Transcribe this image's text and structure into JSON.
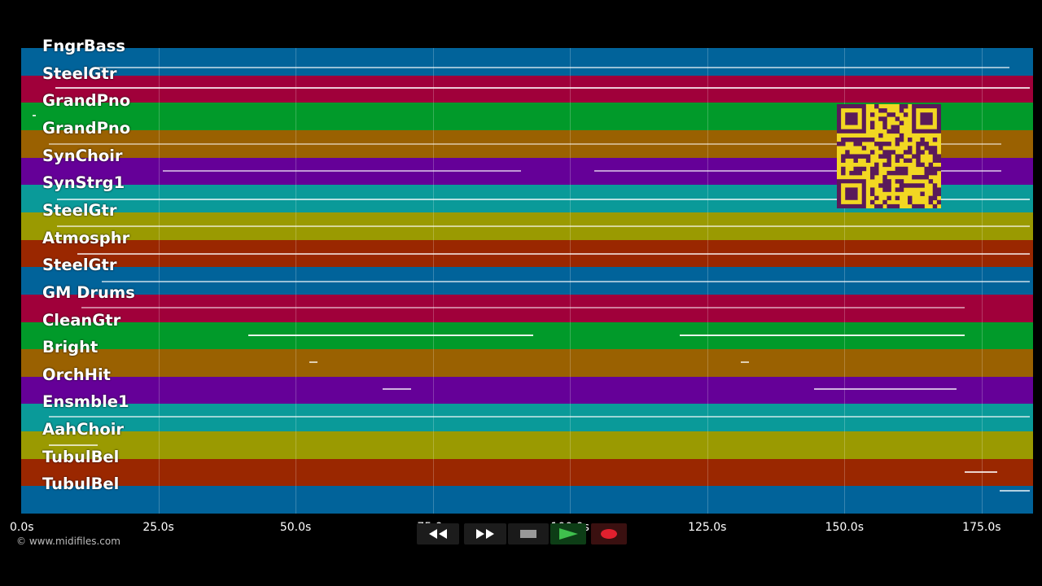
{
  "tracks": [
    {
      "name": "FngrBass",
      "color": "#01639a"
    },
    {
      "name": "SteelGtr",
      "color": "#a0003a"
    },
    {
      "name": "GrandPno",
      "color": "#019a2a"
    },
    {
      "name": "GrandPno",
      "color": "#9a6101"
    },
    {
      "name": "SynChoir",
      "color": "#650098"
    },
    {
      "name": "SynStrg1",
      "color": "#0a9a99"
    },
    {
      "name": "SteelGtr",
      "color": "#9a9a01"
    },
    {
      "name": "Atmosphr",
      "color": "#9a2700"
    },
    {
      "name": "SteelGtr",
      "color": "#01639a"
    },
    {
      "name": "GM Drums",
      "color": "#a0003a"
    },
    {
      "name": "CleanGtr",
      "color": "#019a2a"
    },
    {
      "name": "Bright",
      "color": "#9a6101"
    },
    {
      "name": "OrchHit",
      "color": "#650098"
    },
    {
      "name": "Ensmble1",
      "color": "#0a9a99"
    },
    {
      "name": "AahChoir",
      "color": "#9a9a01"
    },
    {
      "name": "TubulBel",
      "color": "#9a2700"
    },
    {
      "name": "TubulBel",
      "color": "#01639a"
    }
  ],
  "timeline": {
    "ticks": [
      "0.0s",
      "25.0s",
      "50.0s",
      "75.0s",
      "100.0s",
      "125.0s",
      "150.0s",
      "175.0s"
    ]
  },
  "copyright": "© www.midifiles.com",
  "qr_code": {
    "fg": "#5a1a5a",
    "bg": "#f2d722"
  },
  "controls": [
    {
      "name": "rewind-button",
      "icon": "rewind-icon"
    },
    {
      "name": "fast-forward-button",
      "icon": "fast-forward-icon"
    },
    {
      "name": "stop-button",
      "icon": "stop-icon"
    },
    {
      "name": "play-button",
      "icon": "play-icon"
    },
    {
      "name": "record-button",
      "icon": "record-icon"
    }
  ]
}
